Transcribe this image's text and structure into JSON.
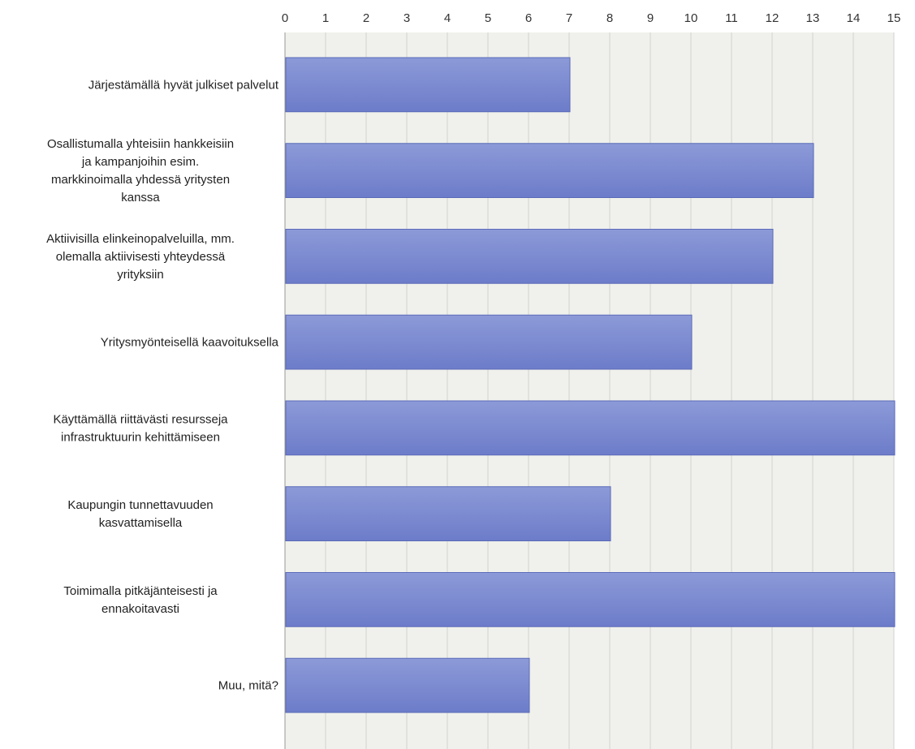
{
  "chart_data": {
    "type": "bar",
    "orientation": "horizontal",
    "title": "",
    "xlabel": "",
    "ylabel": "",
    "xlim": [
      0,
      15
    ],
    "ticks": [
      "0",
      "1",
      "2",
      "3",
      "4",
      "5",
      "6",
      "7",
      "8",
      "9",
      "10",
      "11",
      "12",
      "13",
      "14",
      "15"
    ],
    "tick_position": "top",
    "grid": true,
    "legend": "none",
    "categories": [
      [
        "Järjestämällä hyvät julkiset palvelut"
      ],
      [
        "Osallistumalla yhteisiin hankkeisiin",
        "ja kampanjoihin esim.",
        "markkinoimalla yhdessä yritysten",
        "kanssa"
      ],
      [
        "Aktiivisilla elinkeinopalveluilla, mm.",
        "olemalla aktiivisesti yhteydessä",
        "yrityksiin"
      ],
      [
        "Yritysmyönteisellä kaavoituksella"
      ],
      [
        "Käyttämällä riittävästi resursseja",
        "infrastruktuurin kehittämiseen"
      ],
      [
        "Kaupungin tunnettavuuden",
        "kasvattamisella"
      ],
      [
        "Toimimalla pitkäjänteisesti ja",
        "ennakoitavasti"
      ],
      [
        "Muu, mitä?"
      ]
    ],
    "values": [
      7,
      13,
      12,
      10,
      15,
      8,
      15,
      6
    ],
    "colors": {
      "bar_light": "#8c9ad8",
      "bar_dark": "#6d7cc9",
      "bar_stroke": "#5b6ab8",
      "plot_bg": "#f0f1ec",
      "grid": "#d2d4ce",
      "axis": "#9a9a9a"
    }
  }
}
